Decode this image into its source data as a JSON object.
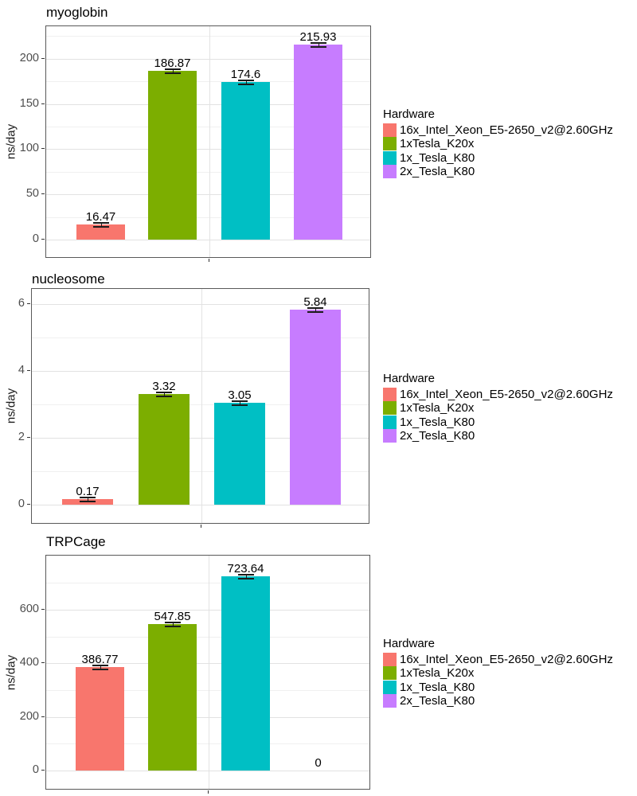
{
  "figure": {
    "background": "#ffffff"
  },
  "legend": {
    "title": "Hardware",
    "position": "right",
    "items": [
      {
        "label": "16x_Intel_Xeon_E5-2650_v2@2.60GHz",
        "color": "#F8766D"
      },
      {
        "label": "1xTesla_K20x",
        "color": "#7CAE00"
      },
      {
        "label": "1x_Tesla_K80",
        "color": "#00BFC4"
      },
      {
        "label": "2x_Tesla_K80",
        "color": "#C77CFF"
      }
    ]
  },
  "chart_data": [
    {
      "type": "bar",
      "title": "myoglobin",
      "xlabel": "",
      "ylabel": "ns/day",
      "categories": [
        "16x_Intel_Xeon_E5-2650_v2@2.60GHz",
        "1xTesla_K20x",
        "1x_Tesla_K80",
        "2x_Tesla_K80"
      ],
      "values": [
        16.47,
        186.87,
        174.6,
        215.93
      ],
      "value_labels": [
        "16.47",
        "186.87",
        "174.6",
        "215.93"
      ],
      "bar_colors": [
        "#F8766D",
        "#7CAE00",
        "#00BFC4",
        "#C77CFF"
      ],
      "yticks": [
        0,
        50,
        100,
        150,
        200
      ],
      "yticks_minor": [
        25,
        75,
        125,
        175,
        225
      ],
      "ylim": [
        0,
        236
      ],
      "grid": true,
      "error_bars": true,
      "legend_position": "right"
    },
    {
      "type": "bar",
      "title": "nucleosome",
      "xlabel": "",
      "ylabel": "ns/day",
      "categories": [
        "16x_Intel_Xeon_E5-2650_v2@2.60GHz",
        "1xTesla_K20x",
        "1x_Tesla_K80",
        "2x_Tesla_K80"
      ],
      "values": [
        0.17,
        3.32,
        3.05,
        5.84
      ],
      "value_labels": [
        "0.17",
        "3.32",
        "3.05",
        "5.84"
      ],
      "bar_colors": [
        "#F8766D",
        "#7CAE00",
        "#00BFC4",
        "#C77CFF"
      ],
      "yticks": [
        0,
        2,
        4,
        6
      ],
      "yticks_minor": [
        1,
        3,
        5
      ],
      "ylim": [
        0,
        6.45
      ],
      "grid": true,
      "error_bars": true,
      "legend_position": "right"
    },
    {
      "type": "bar",
      "title": "TRPCage",
      "xlabel": "",
      "ylabel": "ns/day",
      "categories": [
        "16x_Intel_Xeon_E5-2650_v2@2.60GHz",
        "1xTesla_K20x",
        "1x_Tesla_K80",
        "2x_Tesla_K80"
      ],
      "values": [
        386.77,
        547.85,
        723.64,
        0
      ],
      "value_labels": [
        "386.77",
        "547.85",
        "723.64",
        "0"
      ],
      "bar_colors": [
        "#F8766D",
        "#7CAE00",
        "#00BFC4",
        "#C77CFF"
      ],
      "yticks": [
        0,
        200,
        400,
        600
      ],
      "yticks_minor": [
        100,
        300,
        500,
        700
      ],
      "ylim": [
        0,
        802
      ],
      "grid": true,
      "error_bars": true,
      "legend_position": "right"
    }
  ]
}
